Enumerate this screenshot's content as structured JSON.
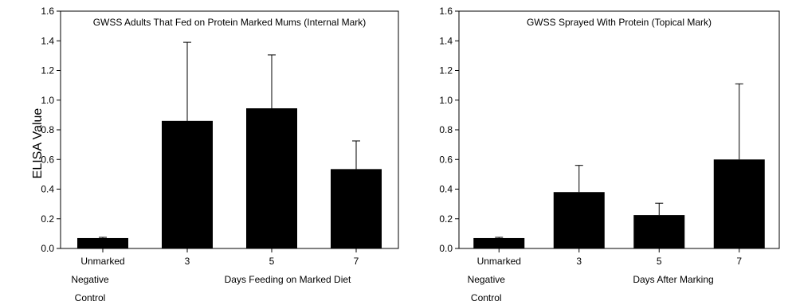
{
  "shared_ylabel": "ELISA Value",
  "chart_data": [
    {
      "type": "bar",
      "title": "GWSS Adults That Fed on Protein Marked Mums (Internal Mark)",
      "xlabel": "Days Feeding on Marked Diet",
      "ylabel": "ELISA Value",
      "ylim": [
        0,
        1.6
      ],
      "yticks": [
        "0.0",
        "0.2",
        "0.4",
        "0.6",
        "0.8",
        "1.0",
        "1.2",
        "1.4",
        "1.6"
      ],
      "categories": [
        [
          "Unmarked",
          "Negative",
          "Control"
        ],
        [
          "3"
        ],
        [
          "5"
        ],
        [
          "7"
        ]
      ],
      "values": [
        0.07,
        0.86,
        0.945,
        0.535
      ],
      "error_upper": [
        0.005,
        0.53,
        0.36,
        0.19
      ],
      "bar_color": "#000000"
    },
    {
      "type": "bar",
      "title": "GWSS Sprayed With Protein (Topical Mark)",
      "xlabel": "Days After Marking",
      "ylabel": "",
      "ylim": [
        0,
        1.6
      ],
      "yticks": [
        "0.0",
        "0.2",
        "0.4",
        "0.6",
        "0.8",
        "1.0",
        "1.2",
        "1.4",
        "1.6"
      ],
      "categories": [
        [
          "Unmarked",
          "Negative",
          "Control"
        ],
        [
          "3"
        ],
        [
          "5"
        ],
        [
          "7"
        ]
      ],
      "values": [
        0.07,
        0.38,
        0.225,
        0.6
      ],
      "error_upper": [
        0.005,
        0.18,
        0.08,
        0.51
      ],
      "bar_color": "#000000"
    }
  ]
}
